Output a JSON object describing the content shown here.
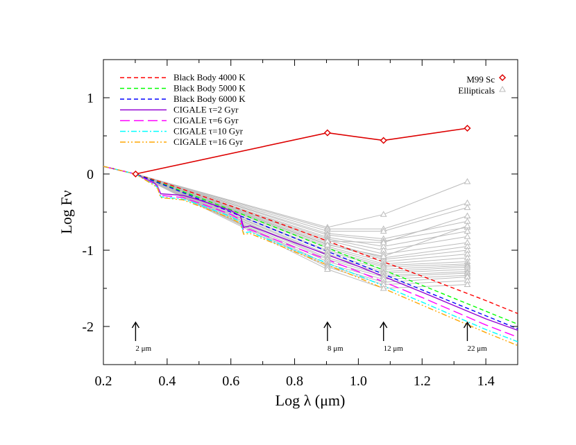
{
  "chart_data": {
    "type": "line",
    "title": "",
    "xlabel": "Log λ (μm)",
    "ylabel": "Log Fν",
    "xlim": [
      0.2,
      1.5
    ],
    "ylim": [
      -2.5,
      1.5
    ],
    "xticks": [
      "0.2",
      "0.4",
      "0.6",
      "0.8",
      "1.0",
      "1.2",
      "1.4"
    ],
    "xtick_values": [
      0.2,
      0.4,
      0.6,
      0.8,
      1.0,
      1.2,
      1.4
    ],
    "yticks": [
      "1",
      "0",
      "-1",
      "-2"
    ],
    "ytick_values": [
      1,
      0,
      -1,
      -2
    ],
    "grid": false,
    "legend_left_position": "top-left",
    "legend_right_position": "top-right",
    "series": [
      {
        "name": "Black Body 4000 K",
        "style": "short-dash",
        "color": "#ff0000",
        "x": [
          0.2,
          0.3,
          0.4,
          0.6,
          0.8,
          1.0,
          1.2,
          1.4,
          1.5
        ],
        "y": [
          0.1,
          0.0,
          -0.13,
          -0.42,
          -0.72,
          -1.03,
          -1.34,
          -1.66,
          -1.83
        ]
      },
      {
        "name": "Black Body 5000 K",
        "style": "short-dash",
        "color": "#00ff00",
        "x": [
          0.2,
          0.3,
          0.4,
          0.6,
          0.8,
          1.0,
          1.2,
          1.4,
          1.5
        ],
        "y": [
          0.1,
          0.0,
          -0.15,
          -0.47,
          -0.8,
          -1.13,
          -1.46,
          -1.8,
          -1.97
        ]
      },
      {
        "name": "Black Body 6000 K",
        "style": "short-dash",
        "color": "#0000ff",
        "x": [
          0.2,
          0.3,
          0.4,
          0.6,
          0.8,
          1.0,
          1.2,
          1.4,
          1.5
        ],
        "y": [
          0.1,
          0.0,
          -0.16,
          -0.5,
          -0.84,
          -1.18,
          -1.52,
          -1.86,
          -2.03
        ]
      },
      {
        "name": "CIGALE τ=2 Gyr",
        "style": "solid",
        "color": "#9400d3",
        "x": [
          0.2,
          0.3,
          0.36,
          0.37,
          0.38,
          0.45,
          0.5,
          0.6,
          0.63,
          0.64,
          0.66,
          0.8,
          1.0,
          1.2,
          1.4,
          1.5
        ],
        "y": [
          0.1,
          0.0,
          -0.12,
          -0.16,
          -0.26,
          -0.28,
          -0.34,
          -0.48,
          -0.55,
          -0.7,
          -0.68,
          -0.9,
          -1.21,
          -1.55,
          -1.9,
          -2.05
        ]
      },
      {
        "name": "CIGALE τ=6 Gyr",
        "style": "long-dash",
        "color": "#ff00ff",
        "x": [
          0.2,
          0.3,
          0.36,
          0.37,
          0.38,
          0.45,
          0.5,
          0.6,
          0.63,
          0.64,
          0.66,
          0.8,
          1.0,
          1.2,
          1.4,
          1.5
        ],
        "y": [
          0.1,
          0.0,
          -0.13,
          -0.17,
          -0.28,
          -0.31,
          -0.38,
          -0.53,
          -0.6,
          -0.74,
          -0.73,
          -0.96,
          -1.28,
          -1.62,
          -1.98,
          -2.14
        ]
      },
      {
        "name": "CIGALE τ=10 Gyr",
        "style": "dash-dot",
        "color": "#00ffff",
        "x": [
          0.2,
          0.3,
          0.36,
          0.37,
          0.38,
          0.45,
          0.5,
          0.6,
          0.63,
          0.64,
          0.66,
          0.8,
          1.0,
          1.2,
          1.4,
          1.5
        ],
        "y": [
          0.1,
          0.0,
          -0.14,
          -0.18,
          -0.3,
          -0.33,
          -0.4,
          -0.56,
          -0.63,
          -0.77,
          -0.76,
          -1.0,
          -1.33,
          -1.68,
          -2.04,
          -2.2
        ]
      },
      {
        "name": "CIGALE τ=16 Gyr",
        "style": "dash-dot-dot",
        "color": "#ffa500",
        "x": [
          0.2,
          0.3,
          0.36,
          0.37,
          0.38,
          0.45,
          0.5,
          0.6,
          0.63,
          0.64,
          0.66,
          0.8,
          1.0,
          1.2,
          1.4,
          1.5
        ],
        "y": [
          0.1,
          0.0,
          -0.15,
          -0.19,
          -0.31,
          -0.34,
          -0.42,
          -0.58,
          -0.65,
          -0.79,
          -0.78,
          -1.02,
          -1.36,
          -1.72,
          -2.08,
          -2.25
        ]
      },
      {
        "name": "M99 Sc",
        "style": "solid-diamond",
        "color": "#dd0000",
        "x": [
          0.301,
          0.903,
          1.079,
          1.342
        ],
        "y": [
          0.0,
          0.54,
          0.44,
          0.6
        ]
      }
    ],
    "ellipticals": {
      "name": "Ellipticals",
      "color": "#bbbbbb",
      "x": [
        0.301,
        0.903,
        1.079,
        1.342
      ],
      "tracks": [
        [
          0,
          -0.7,
          -0.53,
          -0.1
        ],
        [
          0,
          -0.72,
          -0.72,
          -0.38
        ],
        [
          0,
          -0.75,
          -0.75,
          -0.44
        ],
        [
          0,
          -0.78,
          -0.85,
          -0.62
        ],
        [
          0,
          -0.8,
          -0.88,
          -0.7
        ],
        [
          0,
          -0.83,
          -0.95,
          -0.75
        ],
        [
          0,
          -0.85,
          -1.0,
          -0.82
        ],
        [
          0,
          -0.87,
          -1.05,
          -0.9
        ],
        [
          0,
          -0.9,
          -1.1,
          -0.95
        ],
        [
          0,
          -0.92,
          -1.12,
          -1.0
        ],
        [
          0,
          -0.95,
          -1.15,
          -1.05
        ],
        [
          0,
          -0.97,
          -1.18,
          -1.1
        ],
        [
          0,
          -1.0,
          -1.2,
          -1.15
        ],
        [
          0,
          -1.02,
          -1.22,
          -1.18
        ],
        [
          0,
          -1.05,
          -1.25,
          -1.2
        ],
        [
          0,
          -1.07,
          -1.28,
          -1.22
        ],
        [
          0,
          -1.1,
          -1.3,
          -1.25
        ],
        [
          0,
          -1.12,
          -1.33,
          -1.28
        ],
        [
          0,
          -1.15,
          -1.35,
          -1.3
        ],
        [
          0,
          -1.18,
          -1.38,
          -1.33
        ],
        [
          0,
          -1.2,
          -1.42,
          -1.35
        ],
        [
          0,
          -1.22,
          -1.45,
          -1.4
        ],
        [
          0,
          -1.25,
          -1.5,
          -1.45
        ],
        [
          0,
          -0.88,
          -0.9,
          -0.55
        ],
        [
          0,
          -0.93,
          -1.08,
          -0.68
        ]
      ]
    },
    "annotations": [
      {
        "label": "2 μm",
        "x": 0.301
      },
      {
        "label": "8 μm",
        "x": 0.903
      },
      {
        "label": "12 μm",
        "x": 1.079
      },
      {
        "label": "22 μm",
        "x": 1.342
      }
    ]
  }
}
